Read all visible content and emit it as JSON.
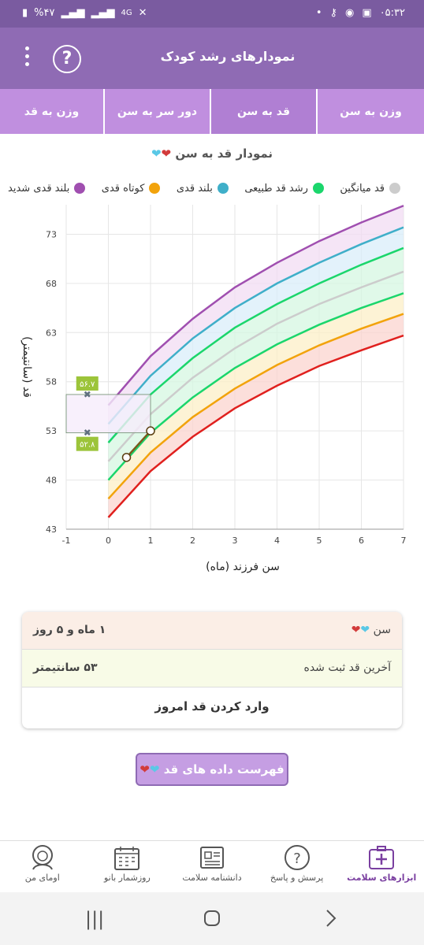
{
  "status_bar": {
    "time": "۰۵:۳۲",
    "battery": "%۴۷",
    "network": "4G"
  },
  "app_bar": {
    "title": "نمودارهای رشد کودک",
    "help_symbol": "?",
    "menu_icon": "more-vert-icon",
    "help_icon": "help-circle-icon"
  },
  "tabs": [
    {
      "label": "وزن به قد",
      "active": false
    },
    {
      "label": "دور سر به سن",
      "active": false
    },
    {
      "label": "قد به سن",
      "active": true
    },
    {
      "label": "وزن به سن",
      "active": false
    }
  ],
  "chart_title": "نمودار قد به سن",
  "legend": [
    {
      "label": "بلند قدی شدید",
      "color": "#a04fb0"
    },
    {
      "label": "کوتاه قدی",
      "color": "#f2a30c"
    },
    {
      "label": "بلند قدی",
      "color": "#3fafc9"
    },
    {
      "label": "رشد قد طبیعی",
      "color": "#1bd66c"
    },
    {
      "label": "قد میانگین",
      "color": "#cccccc"
    }
  ],
  "chart_data": {
    "type": "line",
    "xlabel": "سن فرزند (ماه)",
    "ylabel": "قد (سانتیمتر)",
    "xlim": [
      -1,
      7
    ],
    "ylim": [
      43,
      76
    ],
    "x_ticks": [
      "-1",
      "0",
      "1",
      "2",
      "3",
      "4",
      "5",
      "6",
      "7"
    ],
    "y_ticks": [
      "43",
      "48",
      "53",
      "58",
      "63",
      "68",
      "73"
    ],
    "grid": true,
    "x": [
      0,
      1,
      2,
      3,
      4,
      5,
      6,
      7
    ],
    "series": [
      {
        "color": "#a04fb0",
        "values": [
          55.6,
          60.6,
          64.4,
          67.6,
          70.1,
          72.3,
          74.2,
          75.9
        ]
      },
      {
        "color": "#3fafc9",
        "values": [
          53.7,
          58.6,
          62.4,
          65.5,
          68.0,
          70.1,
          72.0,
          73.7
        ]
      },
      {
        "color": "#1bd66c",
        "values": [
          51.8,
          56.7,
          60.4,
          63.5,
          65.9,
          68.0,
          69.9,
          71.6
        ]
      },
      {
        "color": "#cccccc",
        "values": [
          49.9,
          54.7,
          58.4,
          61.4,
          63.9,
          65.9,
          67.6,
          69.2
        ]
      },
      {
        "color": "#1bd66c",
        "values": [
          48.0,
          52.8,
          56.4,
          59.4,
          61.8,
          63.8,
          65.5,
          67.0
        ]
      },
      {
        "color": "#f2a30c",
        "values": [
          46.1,
          50.8,
          54.4,
          57.3,
          59.7,
          61.7,
          63.4,
          64.9
        ]
      },
      {
        "color": "#e0201e",
        "values": [
          44.2,
          48.9,
          52.4,
          55.3,
          57.6,
          59.6,
          61.2,
          62.7
        ]
      }
    ],
    "bands": [
      {
        "color": "#f1dcf3"
      },
      {
        "color": "#d9eefa"
      },
      {
        "color": "#d6f7e1"
      },
      {
        "color": "#d6f7e1"
      },
      {
        "color": "#fcefc7"
      },
      {
        "color": "#fbd4cf"
      }
    ],
    "child_measurements": {
      "color": "#7a5a1e",
      "points": [
        {
          "x": 0.43,
          "y": 50.3
        },
        {
          "x": 1.0,
          "y": 53.0
        }
      ]
    },
    "reference_markers": [
      {
        "label": "۵۶.۷",
        "y": 56.7
      },
      {
        "label": "۵۲.۸",
        "y": 52.8
      }
    ]
  },
  "info_card": {
    "age_label": "سن",
    "age_value": "۱ ماه و ۵ روز",
    "height_label": "آخرین قد ثبت شده",
    "height_value": "۵۳ سانتیمتر",
    "action_label": "وارد کردن قد امروز"
  },
  "list_button": {
    "label": "فهرست داده های قد"
  },
  "bottom_nav": [
    {
      "label": "ابزارهای سلامت",
      "icon": "medical-kit-icon",
      "active": true
    },
    {
      "label": "پرسش و پاسخ",
      "icon": "question-bubble-icon",
      "active": false
    },
    {
      "label": "دانشنامه سلامت",
      "icon": "newspaper-icon",
      "active": false
    },
    {
      "label": "روزشمار بانو",
      "icon": "calendar-icon",
      "active": false
    },
    {
      "label": "اومای من",
      "icon": "woman-avatar-icon",
      "active": false
    }
  ],
  "system_nav": {
    "recents": "recents-icon",
    "home": "home-icon",
    "back": "back-icon"
  }
}
